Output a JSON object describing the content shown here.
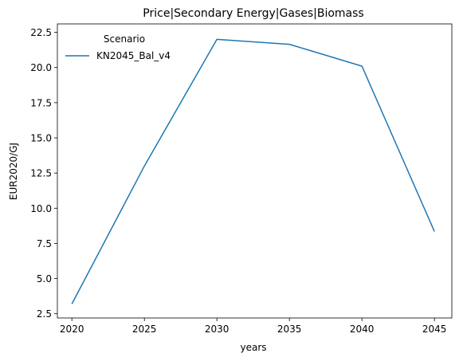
{
  "chart_data": {
    "type": "line",
    "title": "Price|Secondary Energy|Gases|Biomass",
    "xlabel": "years",
    "ylabel": "EUR2020/GJ",
    "x": [
      2020,
      2025,
      2030,
      2035,
      2040,
      2045
    ],
    "series": [
      {
        "name": "KN2045_Bal_v4",
        "values": [
          3.2,
          13.0,
          22.0,
          21.65,
          20.1,
          8.35
        ],
        "color": "#1f77b4"
      }
    ],
    "xlim": [
      2019,
      2046.2
    ],
    "ylim": [
      2.2,
      23.1
    ],
    "xticks": [
      2020,
      2025,
      2030,
      2035,
      2040,
      2045
    ],
    "xtick_labels": [
      "2020",
      "2025",
      "2030",
      "2035",
      "2040",
      "2045"
    ],
    "yticks": [
      2.5,
      5.0,
      7.5,
      10.0,
      12.5,
      15.0,
      17.5,
      20.0,
      22.5
    ],
    "ytick_labels": [
      "2.5",
      "5.0",
      "7.5",
      "10.0",
      "12.5",
      "15.0",
      "17.5",
      "20.0",
      "22.5"
    ],
    "legend": {
      "title": "Scenario",
      "placement": "upper-left"
    },
    "grid": false
  }
}
